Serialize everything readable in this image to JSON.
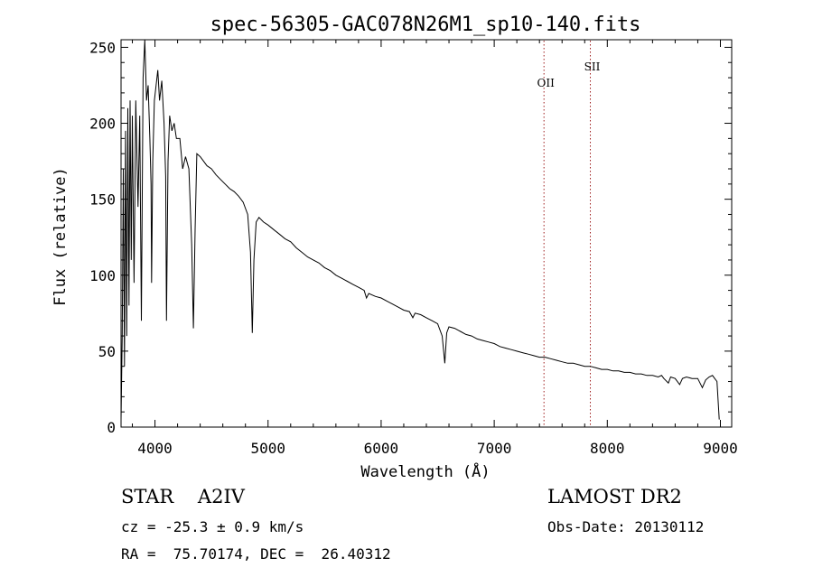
{
  "chart_data": {
    "type": "line",
    "title": "spec-56305-GAC078N26M1_sp10-140.fits",
    "xlabel": "Wavelength (Å)",
    "ylabel": "Flux (relative)",
    "xlim": [
      3700,
      9100
    ],
    "ylim": [
      0,
      255
    ],
    "x_ticks": [
      4000,
      5000,
      6000,
      7000,
      8000,
      9000
    ],
    "y_ticks": [
      0,
      50,
      100,
      150,
      200,
      250
    ],
    "grid": false,
    "series": [
      {
        "color": "#000000",
        "points": [
          [
            3700,
            5
          ],
          [
            3710,
            60
          ],
          [
            3720,
            170
          ],
          [
            3730,
            40
          ],
          [
            3740,
            195
          ],
          [
            3750,
            60
          ],
          [
            3760,
            210
          ],
          [
            3770,
            80
          ],
          [
            3780,
            215
          ],
          [
            3790,
            110
          ],
          [
            3800,
            205
          ],
          [
            3815,
            95
          ],
          [
            3830,
            215
          ],
          [
            3850,
            145
          ],
          [
            3865,
            205
          ],
          [
            3880,
            70
          ],
          [
            3895,
            230
          ],
          [
            3910,
            255
          ],
          [
            3925,
            215
          ],
          [
            3940,
            225
          ],
          [
            3955,
            190
          ],
          [
            3965,
            160
          ],
          [
            3970,
            95
          ],
          [
            3980,
            175
          ],
          [
            3995,
            215
          ],
          [
            4010,
            225
          ],
          [
            4025,
            235
          ],
          [
            4040,
            215
          ],
          [
            4060,
            228
          ],
          [
            4080,
            200
          ],
          [
            4095,
            165
          ],
          [
            4102,
            70
          ],
          [
            4115,
            175
          ],
          [
            4130,
            205
          ],
          [
            4150,
            195
          ],
          [
            4170,
            200
          ],
          [
            4190,
            190
          ],
          [
            4220,
            190
          ],
          [
            4245,
            170
          ],
          [
            4270,
            178
          ],
          [
            4300,
            170
          ],
          [
            4325,
            120
          ],
          [
            4340,
            65
          ],
          [
            4355,
            130
          ],
          [
            4370,
            180
          ],
          [
            4400,
            178
          ],
          [
            4430,
            175
          ],
          [
            4460,
            172
          ],
          [
            4500,
            170
          ],
          [
            4540,
            166
          ],
          [
            4580,
            163
          ],
          [
            4620,
            160
          ],
          [
            4660,
            157
          ],
          [
            4700,
            155
          ],
          [
            4740,
            152
          ],
          [
            4780,
            148
          ],
          [
            4820,
            140
          ],
          [
            4845,
            115
          ],
          [
            4861,
            62
          ],
          [
            4875,
            110
          ],
          [
            4895,
            135
          ],
          [
            4920,
            138
          ],
          [
            4960,
            135
          ],
          [
            5000,
            133
          ],
          [
            5050,
            130
          ],
          [
            5100,
            127
          ],
          [
            5150,
            124
          ],
          [
            5200,
            122
          ],
          [
            5250,
            118
          ],
          [
            5300,
            115
          ],
          [
            5350,
            112
          ],
          [
            5400,
            110
          ],
          [
            5450,
            108
          ],
          [
            5500,
            105
          ],
          [
            5550,
            103
          ],
          [
            5600,
            100
          ],
          [
            5650,
            98
          ],
          [
            5700,
            96
          ],
          [
            5750,
            94
          ],
          [
            5800,
            92
          ],
          [
            5850,
            90
          ],
          [
            5870,
            85
          ],
          [
            5890,
            88
          ],
          [
            5950,
            86
          ],
          [
            6000,
            85
          ],
          [
            6050,
            83
          ],
          [
            6100,
            81
          ],
          [
            6150,
            79
          ],
          [
            6200,
            77
          ],
          [
            6250,
            76
          ],
          [
            6280,
            72
          ],
          [
            6300,
            75
          ],
          [
            6350,
            74
          ],
          [
            6400,
            72
          ],
          [
            6450,
            70
          ],
          [
            6500,
            68
          ],
          [
            6540,
            60
          ],
          [
            6563,
            42
          ],
          [
            6580,
            62
          ],
          [
            6600,
            66
          ],
          [
            6650,
            65
          ],
          [
            6700,
            63
          ],
          [
            6750,
            61
          ],
          [
            6800,
            60
          ],
          [
            6850,
            58
          ],
          [
            6900,
            57
          ],
          [
            6950,
            56
          ],
          [
            7000,
            55
          ],
          [
            7050,
            53
          ],
          [
            7100,
            52
          ],
          [
            7150,
            51
          ],
          [
            7200,
            50
          ],
          [
            7250,
            49
          ],
          [
            7300,
            48
          ],
          [
            7350,
            47
          ],
          [
            7400,
            46
          ],
          [
            7450,
            46
          ],
          [
            7500,
            45
          ],
          [
            7550,
            44
          ],
          [
            7600,
            43
          ],
          [
            7650,
            42
          ],
          [
            7700,
            42
          ],
          [
            7750,
            41
          ],
          [
            7800,
            40
          ],
          [
            7850,
            40
          ],
          [
            7900,
            39
          ],
          [
            7950,
            38
          ],
          [
            8000,
            38
          ],
          [
            8050,
            37
          ],
          [
            8100,
            37
          ],
          [
            8150,
            36
          ],
          [
            8200,
            36
          ],
          [
            8250,
            35
          ],
          [
            8300,
            35
          ],
          [
            8350,
            34
          ],
          [
            8400,
            34
          ],
          [
            8450,
            33
          ],
          [
            8480,
            34
          ],
          [
            8500,
            32
          ],
          [
            8540,
            29
          ],
          [
            8560,
            33
          ],
          [
            8600,
            32
          ],
          [
            8640,
            28
          ],
          [
            8665,
            32
          ],
          [
            8700,
            33
          ],
          [
            8750,
            32
          ],
          [
            8800,
            32
          ],
          [
            8840,
            26
          ],
          [
            8870,
            31
          ],
          [
            8900,
            33
          ],
          [
            8930,
            34
          ],
          [
            8950,
            32
          ],
          [
            8970,
            30
          ],
          [
            8990,
            5
          ]
        ]
      }
    ],
    "lines": [
      {
        "label": "OII",
        "x": 7440,
        "color": "#a02020"
      },
      {
        "label": "SII",
        "x": 7850,
        "color": "#a02020"
      }
    ]
  },
  "info": {
    "object_class": "STAR    A2IV",
    "survey": "LAMOST DR2",
    "cz": "cz = -25.3 ± 0.9 km/s",
    "obs_date": "Obs-Date: 20130112",
    "ra_dec": "RA =  75.70174, DEC =  26.40312"
  }
}
